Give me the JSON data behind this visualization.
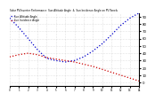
{
  "title": "Solar PV/Inverter Performance  Sun Altitude Angle  &  Sun Incidence Angle on PV Panels",
  "legend_labels": [
    "Sun Altitude Angle",
    "Sun Incidence Angle"
  ],
  "line_colors": [
    "#0000cc",
    "#cc0000"
  ],
  "background_color": "#ffffff",
  "grid_color": "#bbbbbb",
  "x_start": 0,
  "x_end": 14,
  "x_ticks": [
    0,
    1,
    2,
    3,
    4,
    5,
    6,
    7,
    8,
    9,
    10,
    11,
    12,
    13,
    14
  ],
  "ylim": [
    -5,
    95
  ],
  "y_right_ticks": [
    0,
    10,
    20,
    30,
    40,
    50,
    60,
    70,
    80,
    90
  ],
  "y_right_labels": [
    "0",
    "10",
    "20",
    "30",
    "40",
    "50",
    "60",
    "70",
    "80",
    "90"
  ],
  "altitude_x": [
    0,
    1,
    2,
    3,
    4,
    5,
    6,
    7,
    8,
    9,
    10,
    11,
    12,
    13,
    14
  ],
  "altitude_y": [
    88,
    75,
    60,
    45,
    33,
    30,
    28,
    30,
    35,
    43,
    53,
    65,
    78,
    88,
    95
  ],
  "incidence_x": [
    0,
    1,
    2,
    3,
    4,
    5,
    6,
    7,
    8,
    9,
    10,
    11,
    12,
    13,
    14
  ],
  "incidence_y": [
    35,
    38,
    40,
    38,
    34,
    32,
    30,
    28,
    25,
    22,
    18,
    14,
    10,
    6,
    2
  ]
}
